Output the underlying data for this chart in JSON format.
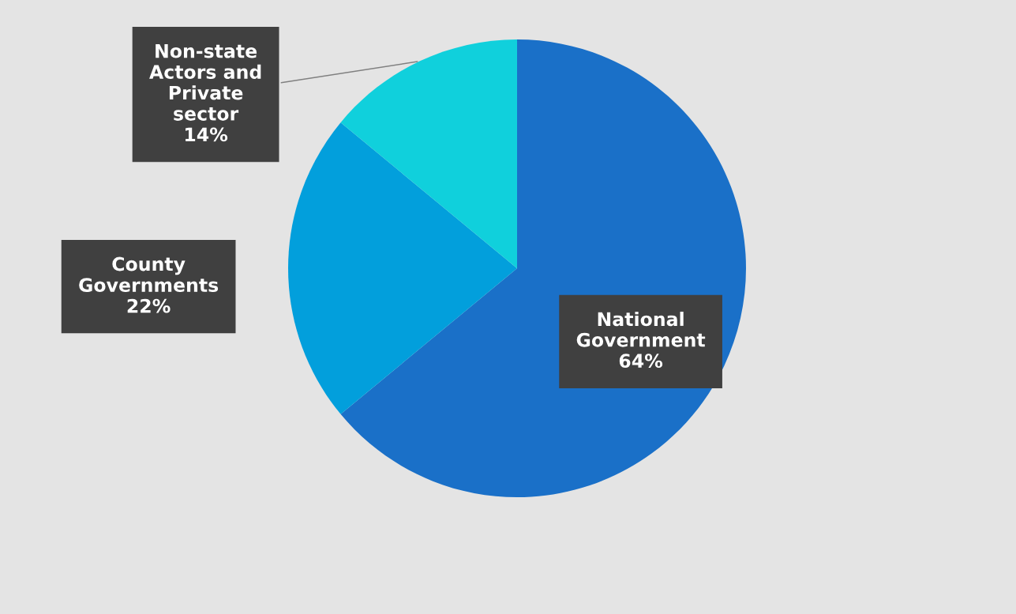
{
  "chart_data": {
    "type": "pie",
    "categories": [
      "National\nGovernment",
      "County\nGovernments",
      "Non-state\nActors and\nPrivate\nsector"
    ],
    "values": [
      64,
      22,
      14
    ],
    "value_labels": [
      "64%",
      "22%",
      "14%"
    ],
    "colors": [
      "#1a70c8",
      "#029fdc",
      "#10d0dc"
    ],
    "legend": false
  }
}
